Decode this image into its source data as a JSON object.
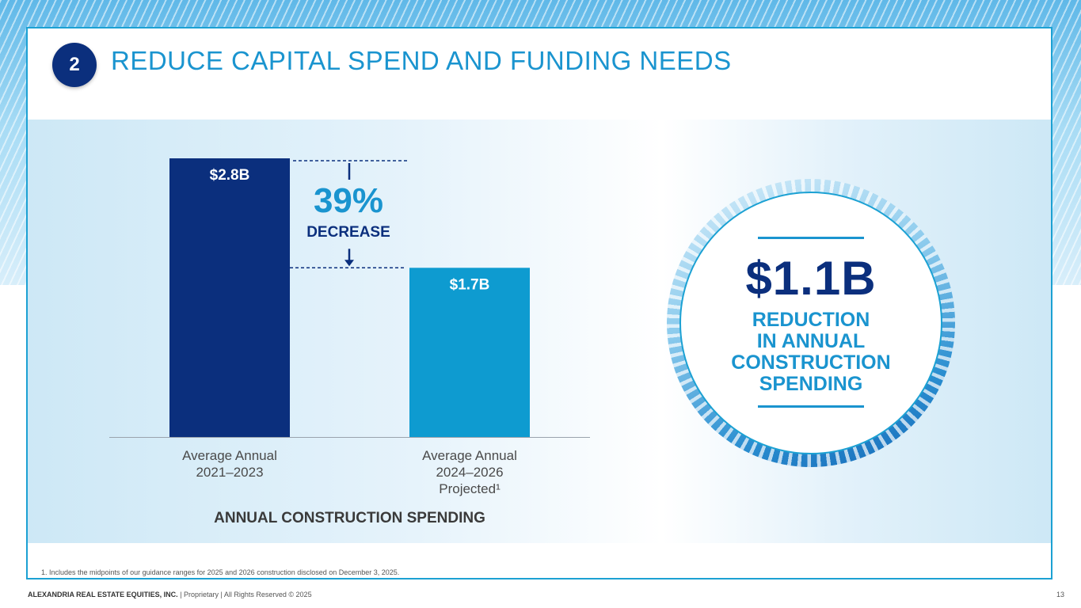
{
  "slide": {
    "section_number": "2",
    "title": "REDUCE CAPITAL SPEND AND FUNDING NEEDS"
  },
  "chart_data": {
    "type": "bar",
    "title": "ANNUAL CONSTRUCTION SPENDING",
    "categories": [
      "Average Annual\n2021–2023",
      "Average Annual\n2024–2026\nProjected¹"
    ],
    "values": [
      2.8,
      1.7
    ],
    "value_labels": [
      "$2.8B",
      "$1.7B"
    ],
    "unit": "$B",
    "ylim": [
      0,
      2.8
    ],
    "grid": false,
    "bar_colors": [
      "#0b2f7d",
      "#0e9bd0"
    ],
    "annotation": {
      "value": "39%",
      "label": "DECREASE"
    }
  },
  "callout": {
    "value": "$1.1B",
    "lines": [
      "REDUCTION",
      "IN ANNUAL",
      "CONSTRUCTION",
      "SPENDING"
    ]
  },
  "footnote": "1.   Includes the midpoints of our guidance ranges for 2025 and 2026 construction disclosed on December 3, 2025.",
  "footer": {
    "company": "ALEXANDRIA REAL ESTATE EQUITIES, INC.",
    "rest": " | Proprietary | All Rights Reserved © 2025",
    "page": "13"
  },
  "colors": {
    "navy": "#0b2f7d",
    "accent": "#1a94cf",
    "bar_light": "#0e9bd0"
  }
}
